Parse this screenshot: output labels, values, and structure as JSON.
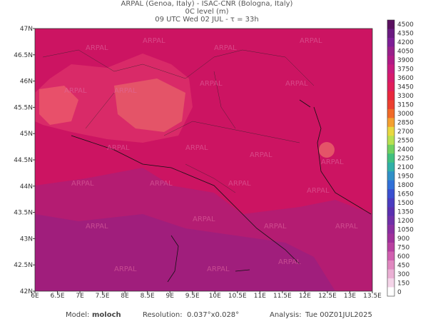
{
  "header": {
    "line1": "ARPAL (Genoa, Italy)  -  ISAC-CNR (Bologna, Italy)",
    "line2": "0C level (m)",
    "line3": "09 UTC Wed 02 JUL  -  τ = 33h"
  },
  "map": {
    "x_labels": [
      "6E",
      "6.5E",
      "7E",
      "7.5E",
      "8E",
      "8.5E",
      "9E",
      "9.5E",
      "10E",
      "10.5E",
      "11E",
      "11.5E",
      "12E",
      "12.5E",
      "13E",
      "13.5E"
    ],
    "y_labels": [
      "47N",
      "46.5N",
      "46N",
      "45.5N",
      "45N",
      "44.5N",
      "44N",
      "43.5N",
      "43N",
      "42.5N",
      "42N"
    ],
    "watermark": "ARPAL"
  },
  "colorbar": {
    "labels": [
      4500,
      4350,
      4200,
      4050,
      3900,
      3750,
      3600,
      3450,
      3300,
      3150,
      3000,
      2850,
      2700,
      2550,
      2400,
      2250,
      2100,
      1950,
      1800,
      1650,
      1500,
      1350,
      1200,
      1050,
      900,
      750,
      600,
      450,
      300,
      150,
      0
    ]
  },
  "footer": {
    "model_label": "Model:",
    "model": "moloch",
    "resolution_label": "Resolution:",
    "resolution": "0.037°x0.028°",
    "analysis_label": "Analysis:",
    "analysis": "Tue 00Z01JUL2025"
  }
}
